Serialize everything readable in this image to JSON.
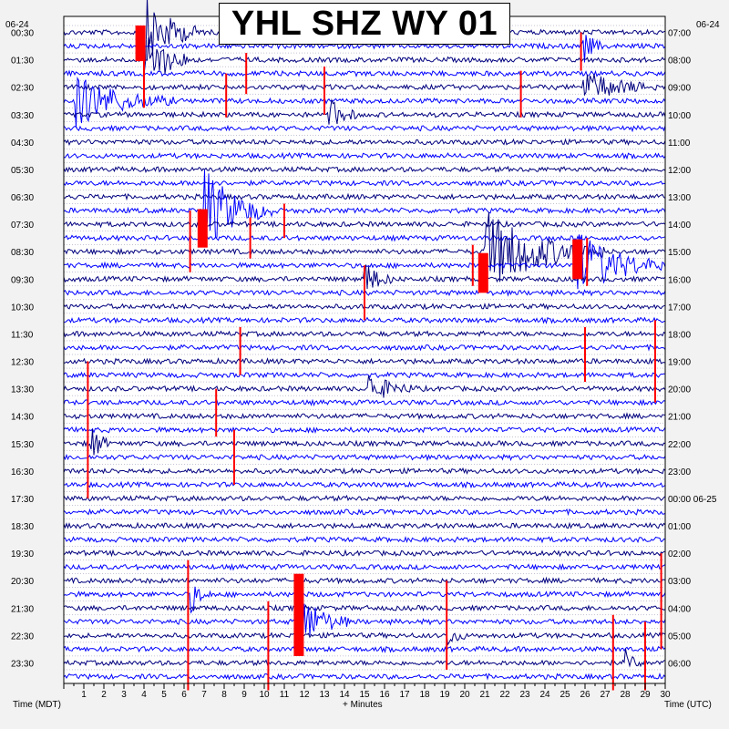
{
  "chart_data": {
    "type": "line",
    "title": "YHL SHZ WY 01",
    "left_date": "06-24",
    "right_date": "06-24",
    "xlabel": "+ Minutes",
    "left_axis_label": "Time (MDT)",
    "right_axis_label": "Time (UTC)",
    "xlim": [
      0,
      30
    ],
    "x_ticks": [
      "1",
      "2",
      "3",
      "4",
      "5",
      "6",
      "7",
      "8",
      "9",
      "10",
      "11",
      "12",
      "13",
      "14",
      "15",
      "16",
      "17",
      "18",
      "19",
      "20",
      "21",
      "22",
      "23",
      "24",
      "25",
      "26",
      "27",
      "28",
      "29",
      "30"
    ],
    "left_hour_labels": [
      "00:30",
      "01:30",
      "02:30",
      "03:30",
      "04:30",
      "05:30",
      "06:30",
      "07:30",
      "08:30",
      "09:30",
      "10:30",
      "11:30",
      "12:30",
      "13:30",
      "14:30",
      "15:30",
      "16:30",
      "17:30",
      "18:30",
      "19:30",
      "20:30",
      "21:30",
      "22:30",
      "23:30"
    ],
    "right_hour_labels": [
      "07:00",
      "08:00",
      "09:00",
      "10:00",
      "11:00",
      "12:00",
      "13:00",
      "14:00",
      "15:00",
      "16:00",
      "17:00",
      "18:00",
      "19:00",
      "20:00",
      "21:00",
      "22:00",
      "23:00",
      "00:00 06-25",
      "01:00",
      "02:00",
      "03:00",
      "04:00",
      "05:00",
      "06:00"
    ],
    "traces_per_hour": 2,
    "trace_colors": [
      "#00007f",
      "#0000ff"
    ],
    "clip_color": "#ff0000",
    "events": [
      {
        "row": 0,
        "minute": 4.0,
        "amp": 3,
        "dur": 3.0
      },
      {
        "row": 2,
        "minute": 4.1,
        "amp": 2.5,
        "dur": 2.5
      },
      {
        "row": 1,
        "minute": 25.9,
        "amp": 1.5,
        "dur": 1.0
      },
      {
        "row": 4,
        "minute": 25.9,
        "amp": 1.3,
        "dur": 4.0
      },
      {
        "row": 5,
        "minute": 0.5,
        "amp": 2.2,
        "dur": 5.0
      },
      {
        "row": 6,
        "minute": 13.2,
        "amp": 1.5,
        "dur": 1.5
      },
      {
        "row": 13,
        "minute": 7.0,
        "amp": 3.5,
        "dur": 3.5
      },
      {
        "row": 16,
        "minute": 21.0,
        "amp": 3.5,
        "dur": 6.0
      },
      {
        "row": 17,
        "minute": 25.5,
        "amp": 3.0,
        "dur": 4.5
      },
      {
        "row": 18,
        "minute": 15.0,
        "amp": 1.5,
        "dur": 1.5
      },
      {
        "row": 26,
        "minute": 15.2,
        "amp": 1.2,
        "dur": 2.5
      },
      {
        "row": 30,
        "minute": 1.3,
        "amp": 2.0,
        "dur": 1.0
      },
      {
        "row": 43,
        "minute": 11.7,
        "amp": 2.5,
        "dur": 2.5
      },
      {
        "row": 41,
        "minute": 6.3,
        "amp": 1.5,
        "dur": 1.0
      },
      {
        "row": 44,
        "minute": 19.1,
        "amp": 1.0,
        "dur": 1.0
      },
      {
        "row": 46,
        "minute": 28.0,
        "amp": 1.0,
        "dur": 1.0
      }
    ],
    "clip_blocks": [
      {
        "minute": 3.8,
        "row_start": 0,
        "row_end": 2.6
      },
      {
        "minute": 6.9,
        "row_start": 13.4,
        "row_end": 16.2
      },
      {
        "minute": 20.9,
        "row_start": 16.6,
        "row_end": 19.5
      },
      {
        "minute": 25.6,
        "row_start": 15.6,
        "row_end": 18.5
      },
      {
        "minute": 11.7,
        "row_start": 40.0,
        "row_end": 46.0
      }
    ],
    "spikes": [
      {
        "minute": 4.0,
        "row_start": 2.0,
        "row_end": 5.5
      },
      {
        "minute": 8.1,
        "row_start": 3.0,
        "row_end": 6.2
      },
      {
        "minute": 9.1,
        "row_start": 1.5,
        "row_end": 4.5
      },
      {
        "minute": 13.0,
        "row_start": 2.5,
        "row_end": 6.0
      },
      {
        "minute": 22.8,
        "row_start": 2.8,
        "row_end": 6.2
      },
      {
        "minute": 25.8,
        "row_start": 0.0,
        "row_end": 2.8
      },
      {
        "minute": 6.3,
        "row_start": 13.0,
        "row_end": 17.5
      },
      {
        "minute": 9.3,
        "row_start": 13.5,
        "row_end": 16.5
      },
      {
        "minute": 11.0,
        "row_start": 12.5,
        "row_end": 15.0
      },
      {
        "minute": 20.4,
        "row_start": 15.5,
        "row_end": 18.5
      },
      {
        "minute": 26.1,
        "row_start": 15.0,
        "row_end": 18.5
      },
      {
        "minute": 15.0,
        "row_start": 17.0,
        "row_end": 21.0
      },
      {
        "minute": 1.2,
        "row_start": 24.0,
        "row_end": 34.0
      },
      {
        "minute": 8.8,
        "row_start": 21.5,
        "row_end": 25.0
      },
      {
        "minute": 7.6,
        "row_start": 26.0,
        "row_end": 29.5
      },
      {
        "minute": 8.5,
        "row_start": 29.0,
        "row_end": 33.0
      },
      {
        "minute": 29.5,
        "row_start": 21.0,
        "row_end": 27.0
      },
      {
        "minute": 26.0,
        "row_start": 21.5,
        "row_end": 25.5
      },
      {
        "minute": 6.2,
        "row_start": 38.5,
        "row_end": 48.0
      },
      {
        "minute": 10.2,
        "row_start": 41.5,
        "row_end": 48.0
      },
      {
        "minute": 19.1,
        "row_start": 40.0,
        "row_end": 46.5
      },
      {
        "minute": 27.4,
        "row_start": 42.5,
        "row_end": 48.0
      },
      {
        "minute": 29.0,
        "row_start": 43.0,
        "row_end": 48.0
      },
      {
        "minute": 29.8,
        "row_start": 38.0,
        "row_end": 45.0
      }
    ]
  }
}
